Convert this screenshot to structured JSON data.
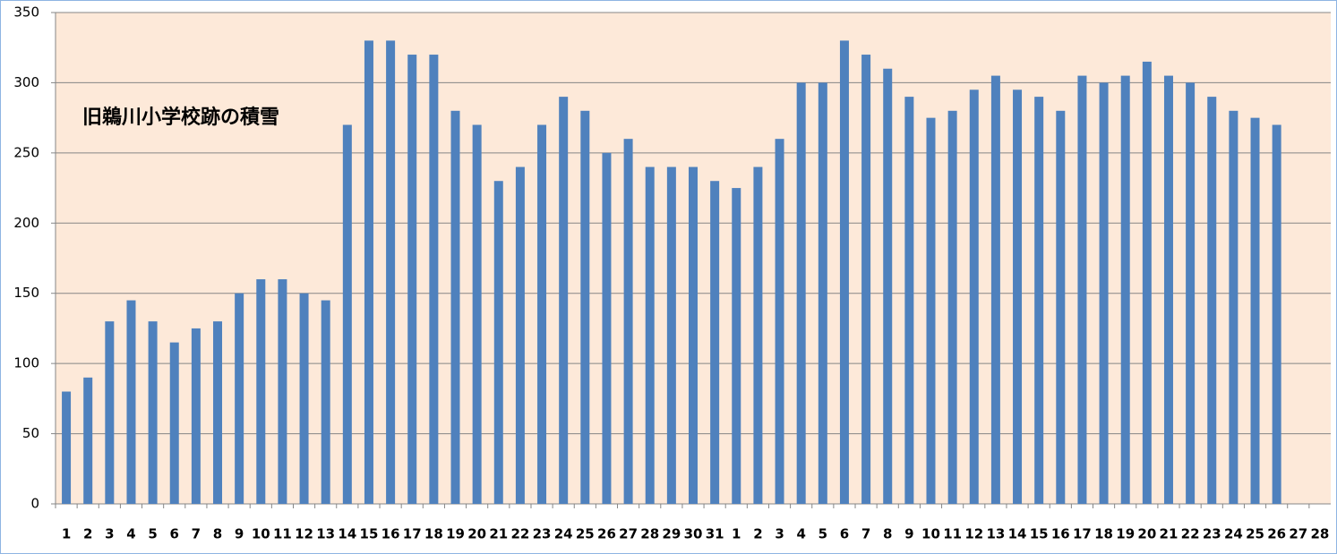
{
  "chart_data": {
    "type": "bar",
    "title": "旧鵜川小学校跡の積雪",
    "categories": [
      "1",
      "2",
      "3",
      "4",
      "5",
      "6",
      "7",
      "8",
      "9",
      "10",
      "11",
      "12",
      "13",
      "14",
      "15",
      "16",
      "17",
      "18",
      "19",
      "20",
      "21",
      "22",
      "23",
      "24",
      "25",
      "26",
      "27",
      "28",
      "29",
      "30",
      "31",
      "1",
      "2",
      "3",
      "4",
      "5",
      "6",
      "7",
      "8",
      "9",
      "10",
      "11",
      "12",
      "13",
      "14",
      "15",
      "16",
      "17",
      "18",
      "19",
      "20",
      "21",
      "22",
      "23",
      "24",
      "25",
      "26",
      "27",
      "28"
    ],
    "values": [
      80,
      90,
      130,
      145,
      130,
      115,
      125,
      130,
      150,
      160,
      160,
      150,
      145,
      270,
      330,
      330,
      320,
      320,
      280,
      270,
      230,
      240,
      270,
      290,
      280,
      250,
      260,
      240,
      240,
      240,
      230,
      225,
      240,
      260,
      300,
      300,
      330,
      320,
      310,
      290,
      275,
      280,
      295,
      305,
      295,
      290,
      280,
      305,
      300,
      305,
      315,
      305,
      300,
      290,
      280,
      275,
      270,
      null,
      null
    ],
    "color": "#4f81bd",
    "background": "#fde9d9",
    "ylim": [
      0,
      350
    ],
    "yticks": [
      0,
      50,
      100,
      150,
      200,
      250,
      300,
      350
    ],
    "grid": true
  }
}
